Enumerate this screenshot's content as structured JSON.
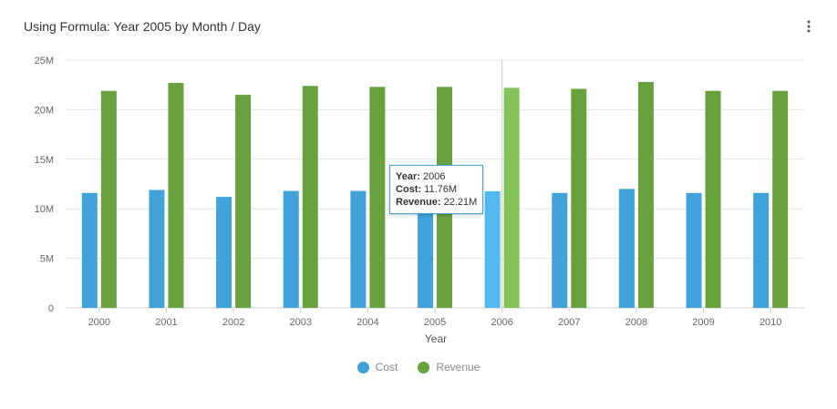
{
  "header": {
    "title": "Using Formula: Year 2005 by Month / Day",
    "menu_icon": "more-vertical-icon"
  },
  "colors": {
    "cost": "#3fa3d9",
    "revenue": "#68a23e",
    "cost_highlight": "#52b9ee",
    "revenue_highlight": "#83c35a",
    "grid": "#e6e6e6"
  },
  "chart_data": {
    "type": "bar",
    "categories": [
      "2000",
      "2001",
      "2002",
      "2003",
      "2004",
      "2005",
      "2006",
      "2007",
      "2008",
      "2009",
      "2010"
    ],
    "series": [
      {
        "name": "Cost",
        "values": [
          11.6,
          11.9,
          11.2,
          11.8,
          11.8,
          11.6,
          11.76,
          11.6,
          12.0,
          11.6,
          11.6
        ]
      },
      {
        "name": "Revenue",
        "values": [
          21.9,
          22.7,
          21.5,
          22.4,
          22.3,
          22.3,
          22.21,
          22.1,
          22.8,
          21.9,
          21.9
        ]
      }
    ],
    "xlabel": "Year",
    "ylabel": "",
    "ylim": [
      0,
      25
    ],
    "y_ticks": [
      "0",
      "5M",
      "10M",
      "15M",
      "20M",
      "25M"
    ],
    "grid": true,
    "legend_position": "bottom",
    "highlighted_category": "2006"
  },
  "tooltip": {
    "year_label": "Year:",
    "year_value": "2006",
    "cost_label": "Cost:",
    "cost_value": "11.76M",
    "revenue_label": "Revenue:",
    "revenue_value": "22.21M"
  },
  "legend": {
    "cost_label": "Cost",
    "revenue_label": "Revenue"
  }
}
